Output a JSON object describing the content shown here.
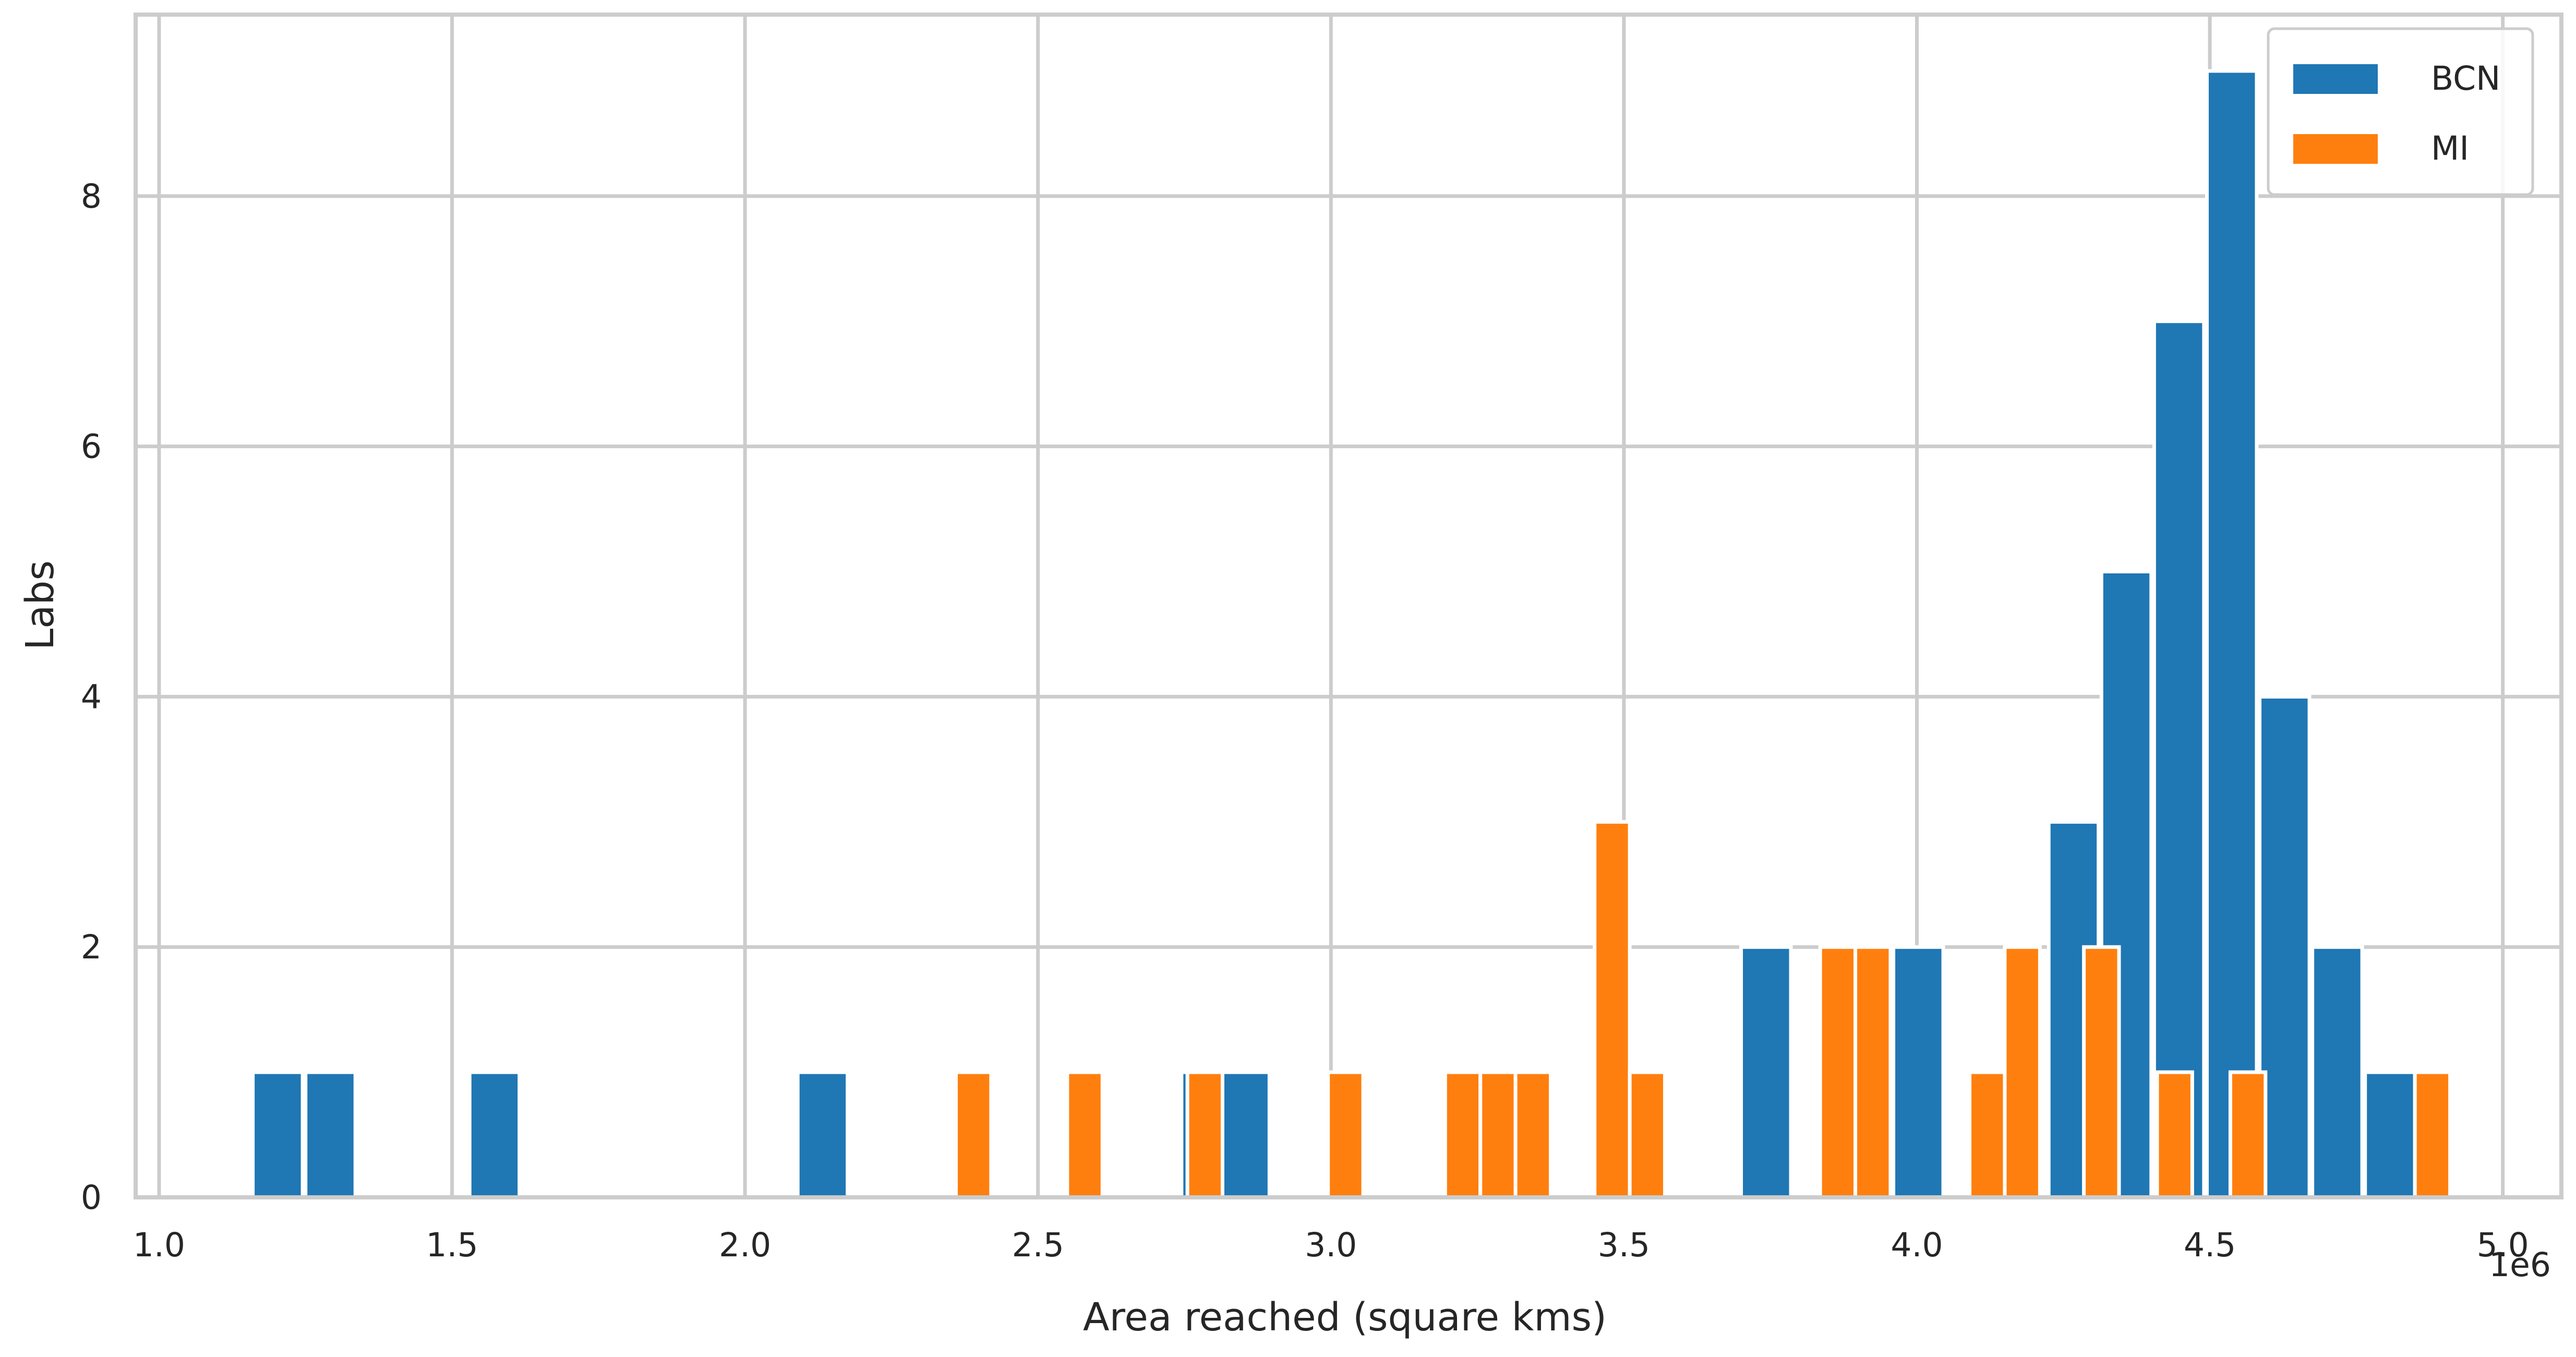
{
  "chart_data": {
    "type": "bar",
    "xlabel": "Area reached (square kms)",
    "ylabel": "Labs",
    "x_offset_text": "1e6",
    "xlim": [
      960000,
      5100000
    ],
    "ylim": [
      0,
      9.45
    ],
    "x_ticks": [
      1000000,
      1500000,
      2000000,
      2500000,
      3000000,
      3500000,
      4000000,
      4500000,
      5000000
    ],
    "x_tick_labels": [
      "1.0",
      "1.5",
      "2.0",
      "2.5",
      "3.0",
      "3.5",
      "4.0",
      "4.5",
      "5.0"
    ],
    "y_ticks": [
      0,
      2,
      4,
      6,
      8
    ],
    "y_tick_labels": [
      "0",
      "2",
      "4",
      "6",
      "8"
    ],
    "grid": true,
    "legend_position": "top-right",
    "series": [
      {
        "name": "BCN",
        "color": "#1f77b4",
        "bins": [
          {
            "x0": 1160000,
            "x1": 1245000,
            "count": 1
          },
          {
            "x0": 1250000,
            "x1": 1335000,
            "count": 1
          },
          {
            "x0": 1530000,
            "x1": 1615000,
            "count": 1
          },
          {
            "x0": 2090000,
            "x1": 2175000,
            "count": 1
          },
          {
            "x0": 2745000,
            "x1": 2810000,
            "count": 1
          },
          {
            "x0": 2810000,
            "x1": 2895000,
            "count": 1
          },
          {
            "x0": 3700000,
            "x1": 3785000,
            "count": 2
          },
          {
            "x0": 3960000,
            "x1": 4045000,
            "count": 2
          },
          {
            "x0": 4225000,
            "x1": 4310000,
            "count": 3
          },
          {
            "x0": 4315000,
            "x1": 4400000,
            "count": 5
          },
          {
            "x0": 4405000,
            "x1": 4490000,
            "count": 7
          },
          {
            "x0": 4495000,
            "x1": 4580000,
            "count": 9
          },
          {
            "x0": 4585000,
            "x1": 4670000,
            "count": 4
          },
          {
            "x0": 4675000,
            "x1": 4760000,
            "count": 2
          },
          {
            "x0": 4765000,
            "x1": 4850000,
            "count": 1
          }
        ]
      },
      {
        "name": "MI",
        "color": "#ff7f0e",
        "bins": [
          {
            "x0": 2360000,
            "x1": 2420000,
            "count": 1
          },
          {
            "x0": 2550000,
            "x1": 2610000,
            "count": 1
          },
          {
            "x0": 2755000,
            "x1": 2815000,
            "count": 1
          },
          {
            "x0": 2995000,
            "x1": 3055000,
            "count": 1
          },
          {
            "x0": 3195000,
            "x1": 3255000,
            "count": 1
          },
          {
            "x0": 3255000,
            "x1": 3315000,
            "count": 1
          },
          {
            "x0": 3315000,
            "x1": 3375000,
            "count": 1
          },
          {
            "x0": 3450000,
            "x1": 3510000,
            "count": 3
          },
          {
            "x0": 3510000,
            "x1": 3570000,
            "count": 1
          },
          {
            "x0": 3835000,
            "x1": 3895000,
            "count": 2
          },
          {
            "x0": 3895000,
            "x1": 3955000,
            "count": 2
          },
          {
            "x0": 4090000,
            "x1": 4150000,
            "count": 1
          },
          {
            "x0": 4150000,
            "x1": 4210000,
            "count": 2
          },
          {
            "x0": 4285000,
            "x1": 4345000,
            "count": 2
          },
          {
            "x0": 4410000,
            "x1": 4470000,
            "count": 1
          },
          {
            "x0": 4535000,
            "x1": 4595000,
            "count": 1
          },
          {
            "x0": 4850000,
            "x1": 4910000,
            "count": 1
          }
        ]
      }
    ]
  }
}
